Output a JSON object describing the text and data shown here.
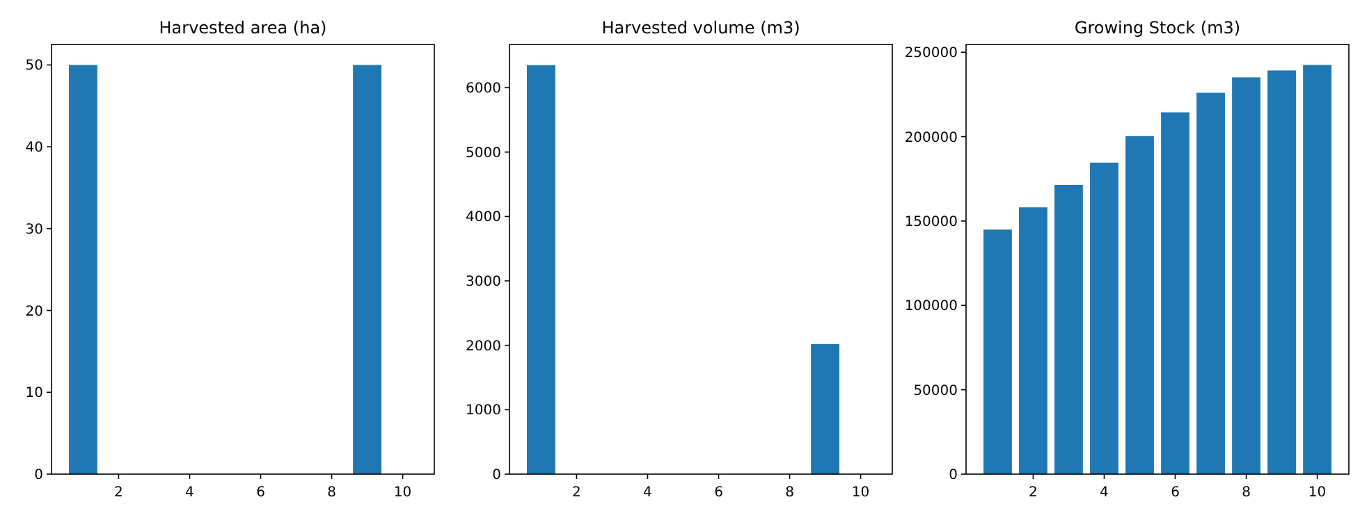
{
  "chart_data": [
    {
      "type": "bar",
      "title": "Harvested area (ha)",
      "x": [
        1,
        2,
        3,
        4,
        5,
        6,
        7,
        8,
        9,
        10
      ],
      "values": [
        50,
        0,
        0,
        0,
        0,
        0,
        0,
        0,
        50,
        0
      ],
      "color": "#1f77b4",
      "xlim": [
        0.11,
        10.89
      ],
      "xticks": [
        2,
        4,
        6,
        8,
        10
      ],
      "ylim": [
        0,
        52.5
      ],
      "yticks": [
        0,
        10,
        20,
        30,
        40,
        50
      ],
      "grid": false
    },
    {
      "type": "bar",
      "title": "Harvested volume (m3)",
      "x": [
        1,
        2,
        3,
        4,
        5,
        6,
        7,
        8,
        9,
        10
      ],
      "values": [
        6350,
        0,
        0,
        0,
        0,
        0,
        0,
        0,
        2020,
        0
      ],
      "color": "#1f77b4",
      "xlim": [
        0.11,
        10.89
      ],
      "xticks": [
        2,
        4,
        6,
        8,
        10
      ],
      "ylim": [
        0,
        6670
      ],
      "yticks": [
        0,
        1000,
        2000,
        3000,
        4000,
        5000,
        6000
      ],
      "grid": false
    },
    {
      "type": "bar",
      "title": "Growing Stock (m3)",
      "x": [
        1,
        2,
        3,
        4,
        5,
        6,
        7,
        8,
        9,
        10
      ],
      "values": [
        144900,
        158100,
        171400,
        184600,
        200300,
        214400,
        226000,
        235100,
        239200,
        242500
      ],
      "color": "#1f77b4",
      "xlim": [
        0.11,
        10.89
      ],
      "xticks": [
        2,
        4,
        6,
        8,
        10
      ],
      "ylim": [
        0,
        254600
      ],
      "yticks": [
        0,
        50000,
        100000,
        150000,
        200000,
        250000
      ],
      "grid": false
    }
  ]
}
